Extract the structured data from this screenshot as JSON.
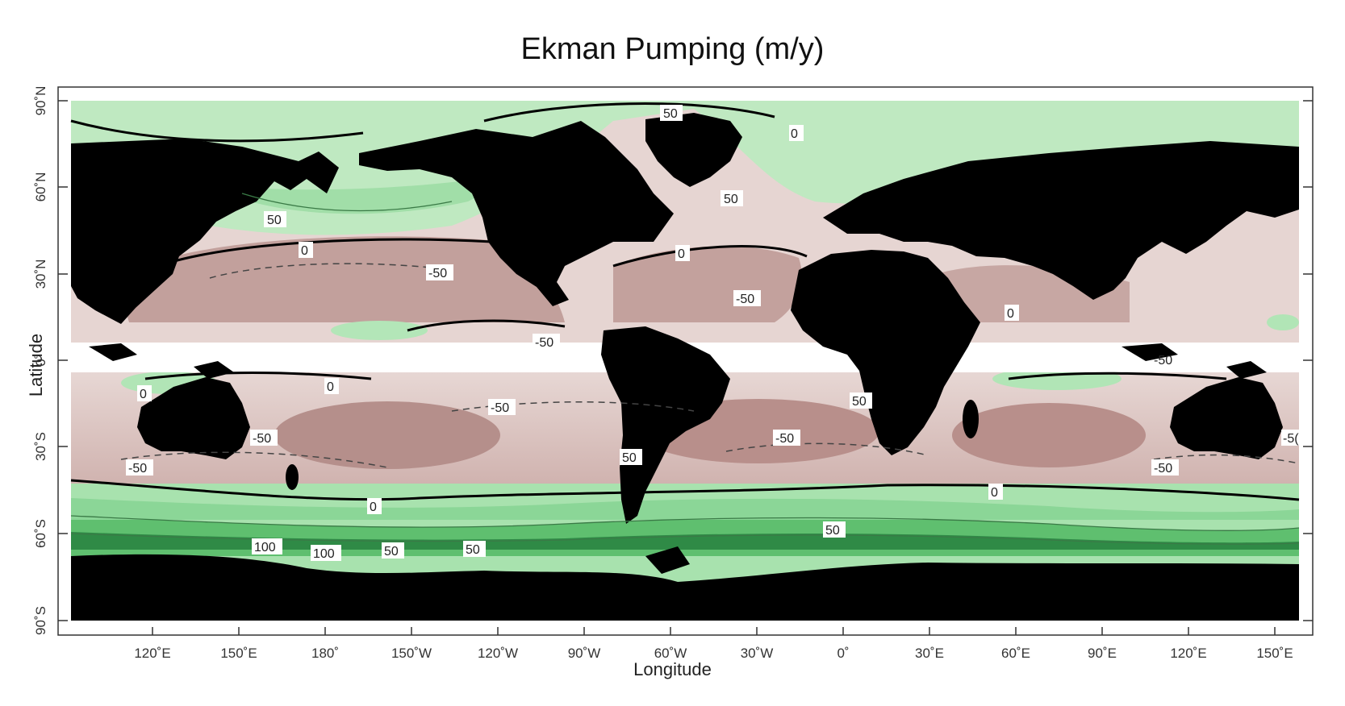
{
  "map": {
    "title": "Ekman Pumping (m/y)",
    "xlabel": "Longitude",
    "ylabel": "Latitude",
    "colors": {
      "land": "#000000",
      "negative": "#b38d8a",
      "negative_light": "#e3cfcc",
      "positive": "#9fe0a6",
      "positive_strong": "#2f8a46",
      "equatorial_gap": "#ffffff",
      "frame": "#333333"
    },
    "x_ticks": [
      "120˚E",
      "150˚E",
      "180˚",
      "150˚W",
      "120˚W",
      "90˚W",
      "60˚W",
      "30˚W",
      "0˚",
      "30˚E",
      "60˚E",
      "90˚E",
      "120˚E",
      "150˚E"
    ],
    "y_ticks": [
      "90˚N",
      "60˚N",
      "30˚N",
      "0˚",
      "30˚S",
      "60˚S",
      "90˚S"
    ],
    "contour_labels": [
      "50",
      "0",
      "50",
      "50",
      "0",
      "0",
      "-50",
      "-50",
      "-50",
      "0",
      "0",
      "0",
      "-50",
      "50",
      "-50",
      "-50",
      "-50",
      "50",
      "-50",
      "-50",
      "0",
      "0",
      "100",
      "100",
      "50",
      "50",
      "50",
      "-5("
    ]
  }
}
